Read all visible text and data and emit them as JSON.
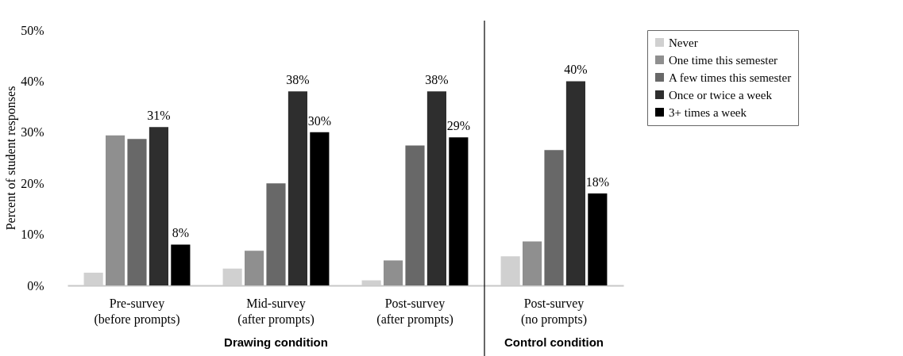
{
  "chart_data": {
    "type": "bar",
    "ylabel": "Percent of student responses",
    "categories": [
      "Pre-survey\n(before prompts)",
      "Mid-survey\n(after prompts)",
      "Post-survey\n(after prompts)",
      "Post-survey\n(no prompts)"
    ],
    "series": [
      {
        "name": "Never",
        "color": "#d0d0d0",
        "values": [
          2.5,
          3.3,
          1.0,
          5.7
        ]
      },
      {
        "name": "One time this semester",
        "color": "#8f8f8f",
        "values": [
          29.4,
          6.8,
          4.9,
          8.6
        ]
      },
      {
        "name": "A few times this semester",
        "color": "#686868",
        "values": [
          28.7,
          20.0,
          27.4,
          26.5
        ]
      },
      {
        "name": "Once or twice a week",
        "color": "#2e2e2e",
        "values": [
          31,
          38,
          38,
          40
        ],
        "value_labels": [
          "31%",
          "38%",
          "38%",
          "40%"
        ]
      },
      {
        "name": "3+ times a week",
        "color": "#000000",
        "values": [
          8,
          30,
          29,
          18
        ],
        "value_labels": [
          "8%",
          "30%",
          "29%",
          "18%"
        ]
      }
    ],
    "ylim": [
      0,
      50
    ],
    "yticks": [
      {
        "value": 0,
        "label": "0%"
      },
      {
        "value": 10,
        "label": "10%"
      },
      {
        "value": 20,
        "label": "20%"
      },
      {
        "value": 30,
        "label": "30%"
      },
      {
        "value": 40,
        "label": "40%"
      },
      {
        "value": 50,
        "label": "50%"
      }
    ],
    "annotations": [
      "Drawing condition",
      "Control condition"
    ],
    "grid": false,
    "legend": "right"
  }
}
